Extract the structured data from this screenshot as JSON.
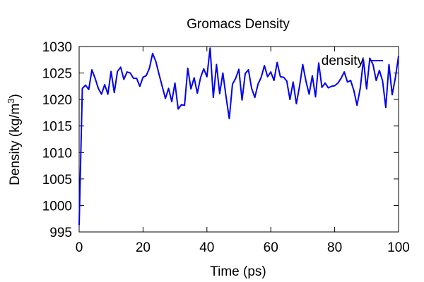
{
  "chart_data": {
    "type": "line",
    "title": "Gromacs Density",
    "xlabel": "Time (ps)",
    "ylabel_main": "Density (kg/m",
    "ylabel_sup": "3",
    "ylabel_close": ")",
    "xlim": [
      0,
      100
    ],
    "ylim": [
      995,
      1030
    ],
    "xticks": [
      0,
      20,
      40,
      60,
      80,
      100
    ],
    "yticks": [
      995,
      1000,
      1005,
      1010,
      1015,
      1020,
      1025,
      1030
    ],
    "grid": false,
    "legend": "top-right",
    "series": [
      {
        "name": "density",
        "color": "#0000ee",
        "x": [
          0,
          1,
          2,
          3,
          4,
          5,
          6,
          7,
          8,
          9,
          10,
          11,
          12,
          13,
          14,
          15,
          16,
          17,
          18,
          19,
          20,
          21,
          22,
          23,
          24,
          25,
          26,
          27,
          28,
          29,
          30,
          31,
          32,
          33,
          34,
          35,
          36,
          37,
          38,
          39,
          40,
          41,
          42,
          43,
          44,
          45,
          46,
          47,
          48,
          49,
          50,
          51,
          52,
          53,
          54,
          55,
          56,
          57,
          58,
          59,
          60,
          61,
          62,
          63,
          64,
          65,
          66,
          67,
          68,
          69,
          70,
          71,
          72,
          73,
          74,
          75,
          76,
          77,
          78,
          79,
          80,
          81,
          82,
          83,
          84,
          85,
          86,
          87,
          88,
          89,
          90,
          91,
          92,
          93,
          94,
          95,
          96,
          97,
          98,
          99,
          100
        ],
        "y": [
          996.3,
          1022.1,
          1022.7,
          1021.9,
          1025.6,
          1024.0,
          1022.1,
          1021.0,
          1022.8,
          1021.0,
          1025.3,
          1021.3,
          1025.3,
          1026.1,
          1023.8,
          1025.2,
          1025.0,
          1024.0,
          1024.0,
          1022.5,
          1024.2,
          1024.5,
          1025.9,
          1028.7,
          1027.2,
          1024.8,
          1022.5,
          1020.2,
          1022.1,
          1019.6,
          1023.1,
          1018.2,
          1019.0,
          1018.9,
          1025.9,
          1022.0,
          1024.1,
          1021.2,
          1024.1,
          1025.8,
          1024.3,
          1029.7,
          1020.4,
          1026.6,
          1021.1,
          1025.0,
          1020.5,
          1016.4,
          1022.9,
          1024.0,
          1025.7,
          1019.9,
          1024.9,
          1025.6,
          1022.1,
          1020.4,
          1022.9,
          1024.2,
          1026.4,
          1024.3,
          1025.2,
          1023.6,
          1027.0,
          1024.3,
          1024.2,
          1023.5,
          1020.0,
          1023.3,
          1019.2,
          1022.5,
          1026.6,
          1023.5,
          1021.0,
          1024.5,
          1020.5,
          1026.9,
          1022.3,
          1023.1,
          1022.2,
          1022.5,
          1022.6,
          1023.1,
          1024.0,
          1025.2,
          1023.3,
          1023.6,
          1021.7,
          1018.9,
          1022.1,
          1027.5,
          1022.0,
          1027.8,
          1026.6,
          1023.6,
          1025.5,
          1023.5,
          1018.5,
          1026.6,
          1020.9,
          1024.1,
          1028.2
        ]
      }
    ]
  }
}
